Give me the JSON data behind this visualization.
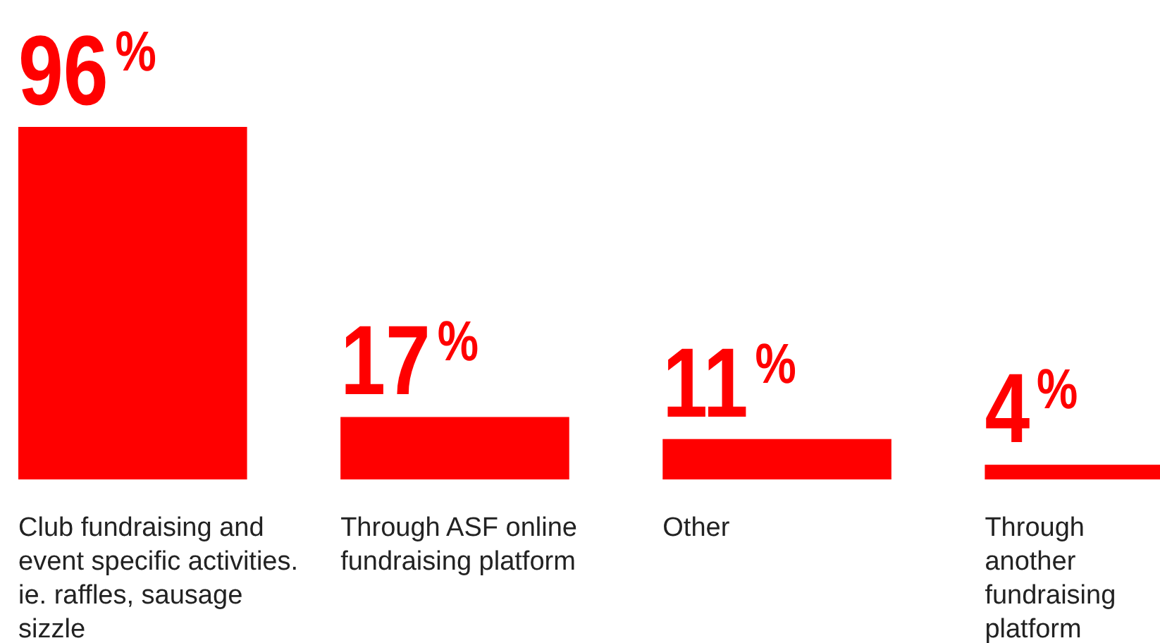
{
  "chart_data": {
    "type": "bar",
    "categories": [
      "Club fundraising and event specific activities. ie. raffles, sausage sizzle",
      "Through ASF online fundraising platform",
      "Other",
      "Through another fundraising platform"
    ],
    "values": [
      96,
      17,
      11,
      4
    ],
    "value_labels": [
      "96%",
      "17%",
      "11%",
      "4%"
    ],
    "color": "#ff0000"
  }
}
